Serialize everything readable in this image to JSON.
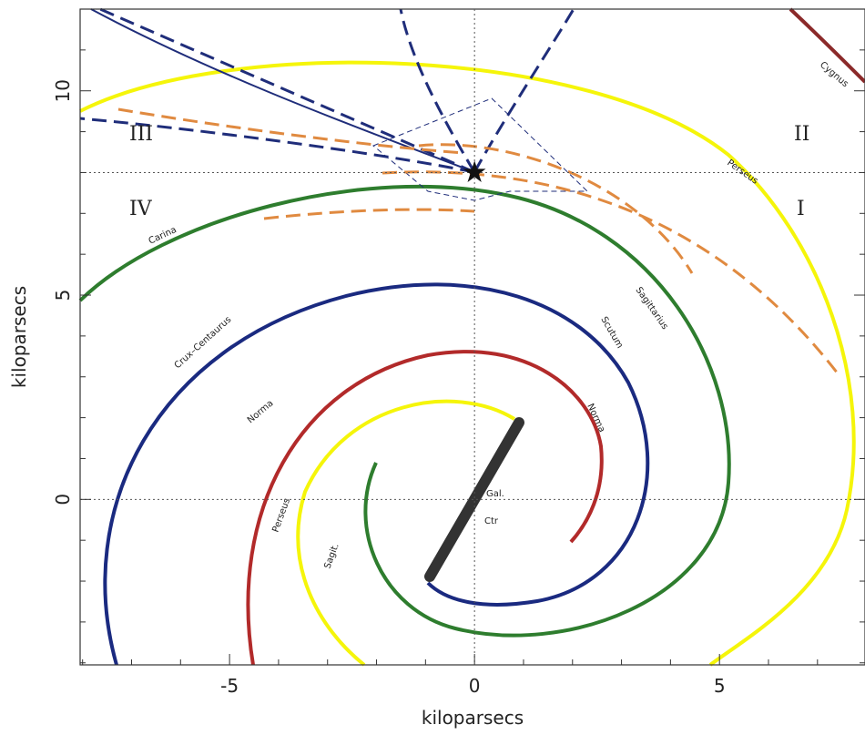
{
  "chart_data": {
    "type": "map",
    "x_label": "kiloparsecs",
    "y_label": "kiloparsecs",
    "xlim": [
      -8.05,
      7.97
    ],
    "ylim": [
      -4.05,
      12
    ],
    "xticks": [
      -5,
      0,
      5
    ],
    "yticks": [
      0,
      5,
      10
    ],
    "xminorticks": [
      -8,
      -7,
      -6,
      -4,
      -3,
      -2,
      -1,
      1,
      2,
      3,
      4,
      6,
      7
    ],
    "yminorticks": [
      -4,
      -3,
      -2,
      -1,
      1,
      2,
      3,
      4,
      6,
      7,
      8,
      9,
      11,
      12
    ],
    "reference_lines": {
      "x": [
        0
      ],
      "y": [
        0,
        8
      ]
    },
    "sun": {
      "x": 0,
      "y": 8
    },
    "annotations": [
      "Cygnus",
      "Perseus",
      "Carina",
      "Crux–Centaurus",
      "Norma",
      "Perseus",
      "Sagit.",
      "Sagittarius",
      "Scutum",
      "Norma",
      "Gal.",
      "Ctr",
      "I",
      "II",
      "III",
      "IV"
    ]
  }
}
